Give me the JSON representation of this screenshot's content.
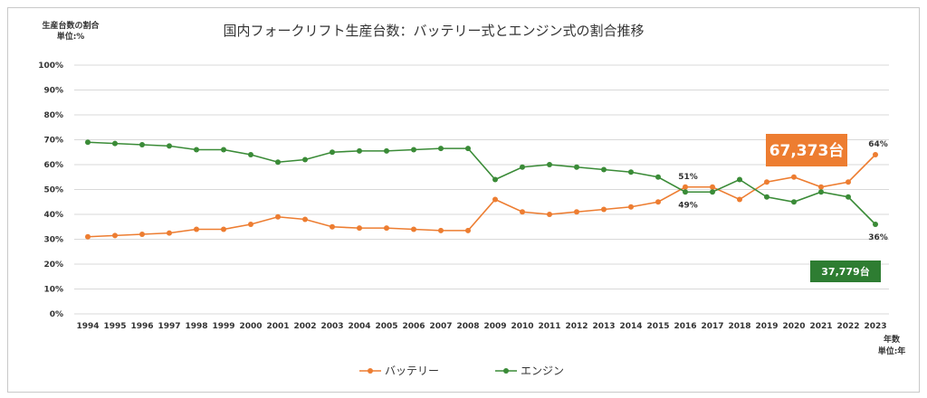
{
  "chart_data": {
    "type": "line",
    "title": "国内フォークリフト生産台数：バッテリー式とエンジン式の割合推移",
    "y_note": [
      "生産台数の割合",
      "単位:%"
    ],
    "x_note": [
      "年数",
      "単位:年"
    ],
    "ylim": [
      0,
      100
    ],
    "y_ticks": [
      "0%",
      "10%",
      "20%",
      "30%",
      "40%",
      "50%",
      "60%",
      "70%",
      "80%",
      "90%",
      "100%"
    ],
    "grid": true,
    "legend_position": "bottom",
    "categories": [
      "1994",
      "1995",
      "1996",
      "1997",
      "1998",
      "1999",
      "2000",
      "2001",
      "2002",
      "2003",
      "2004",
      "2005",
      "2006",
      "2007",
      "2008",
      "2009",
      "2010",
      "2011",
      "2012",
      "2013",
      "2014",
      "2015",
      "2016",
      "2017",
      "2018",
      "2019",
      "2020",
      "2021",
      "2022",
      "2023"
    ],
    "series": [
      {
        "name": "バッテリー",
        "color": "#ED7D31",
        "values": [
          31,
          31.5,
          32,
          32.5,
          34,
          34,
          36,
          39,
          38,
          35,
          34.5,
          34.5,
          34,
          33.5,
          33.5,
          46,
          41,
          40,
          41,
          42,
          43,
          45,
          51,
          51,
          46,
          53,
          55,
          51,
          53,
          64
        ]
      },
      {
        "name": "エンジン",
        "color": "#3A8B37",
        "values": [
          69,
          68.5,
          68,
          67.5,
          66,
          66,
          64,
          61,
          62,
          65,
          65.5,
          65.5,
          66,
          66.5,
          66.5,
          54,
          59,
          60,
          59,
          58,
          57,
          55,
          49,
          49,
          54,
          47,
          45,
          49,
          47,
          36
        ]
      }
    ],
    "annotations": [
      {
        "text": "51%",
        "series": 0,
        "index": 22,
        "pos": "above"
      },
      {
        "text": "49%",
        "series": 1,
        "index": 22,
        "pos": "below"
      },
      {
        "text": "64%",
        "series": 0,
        "index": 29,
        "pos": "above"
      },
      {
        "text": "36%",
        "series": 1,
        "index": 29,
        "pos": "below"
      }
    ],
    "callouts": [
      {
        "text": "67,373台",
        "color": "#ED7D31"
      },
      {
        "text": "37,779台",
        "color": "#2E7D32"
      }
    ]
  }
}
